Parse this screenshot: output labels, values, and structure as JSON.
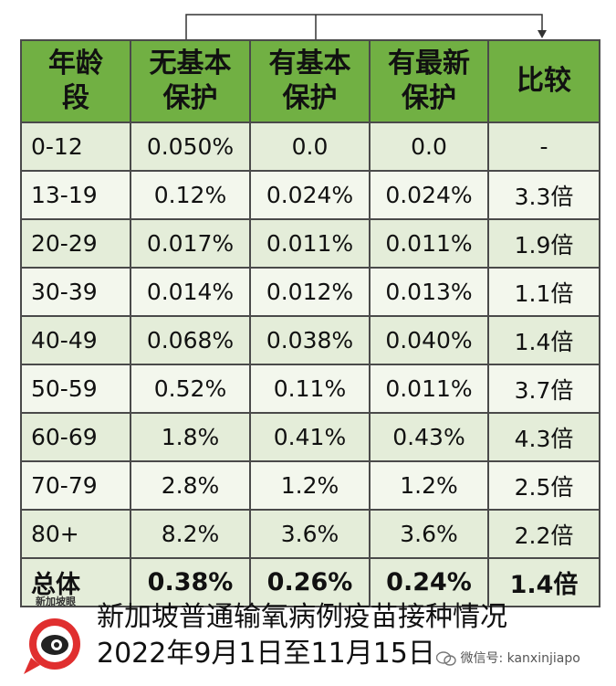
{
  "chart_data": {
    "type": "table",
    "columns": [
      "年龄段",
      "无基本保护",
      "有基本保护",
      "有最新保护",
      "比较"
    ],
    "rows": [
      [
        "0-12",
        "0.050%",
        "0.0",
        "0.0",
        "-"
      ],
      [
        "13-19",
        "0.12%",
        "0.024%",
        "0.024%",
        "3.3倍"
      ],
      [
        "20-29",
        "0.017%",
        "0.011%",
        "0.011%",
        "1.9倍"
      ],
      [
        "30-39",
        "0.014%",
        "0.012%",
        "0.013%",
        "1.1倍"
      ],
      [
        "40-49",
        "0.068%",
        "0.038%",
        "0.040%",
        "1.4倍"
      ],
      [
        "50-59",
        "0.52%",
        "0.11%",
        "0.011%",
        "3.7倍"
      ],
      [
        "60-69",
        "1.8%",
        "0.41%",
        "0.43%",
        "4.3倍"
      ],
      [
        "70-79",
        "2.8%",
        "1.2%",
        "1.2%",
        "2.5倍"
      ],
      [
        "80+",
        "8.2%",
        "3.6%",
        "3.6%",
        "2.2倍"
      ]
    ],
    "total_row": [
      "总体",
      "0.38%",
      "0.26%",
      "0.24%",
      "1.4倍"
    ],
    "header_color": "#71b043",
    "row_colors": [
      "#e4edd9",
      "#f3f7ed"
    ]
  },
  "header": {
    "col1": [
      "年龄",
      "段"
    ],
    "col2": [
      "无基本",
      "保护"
    ],
    "col3": [
      "有基本",
      "保护"
    ],
    "col4": [
      "有最新",
      "保护"
    ],
    "col5": "比较"
  },
  "footer": {
    "logo_name": "新加坡眼",
    "line1": "新加坡普通输氧病例疫苗接种情况",
    "line2": "2022年9月1日至11月15日",
    "wechat": "微信号: kanxinjiapo"
  }
}
